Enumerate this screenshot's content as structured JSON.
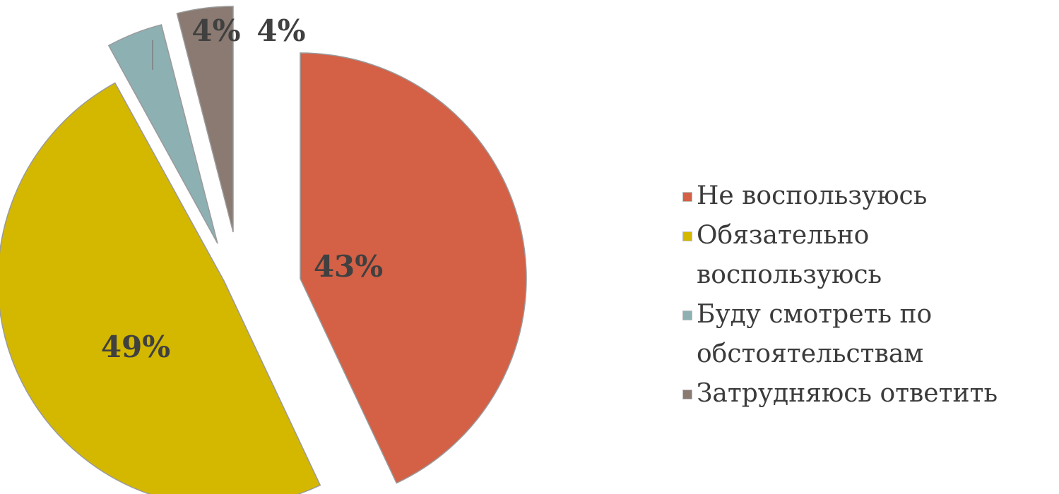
{
  "chart_data": {
    "type": "pie",
    "title": "",
    "slices": [
      {
        "label": "Не воспользуюсь",
        "value": 43,
        "data_label": "43%",
        "color": "#D46046"
      },
      {
        "label": "Обязательно воспользуюсь",
        "value": 49,
        "data_label": "49%",
        "color": "#D4B800"
      },
      {
        "label": "Буду смотреть по обстоятельствам",
        "value": 4,
        "data_label": "4%",
        "color": "#8DB0B3"
      },
      {
        "label": "Затрудняюсь ответить",
        "value": 4,
        "data_label": "4%",
        "color": "#8A7A72"
      }
    ],
    "legend_position": "right",
    "data_label_color": "#404040"
  }
}
